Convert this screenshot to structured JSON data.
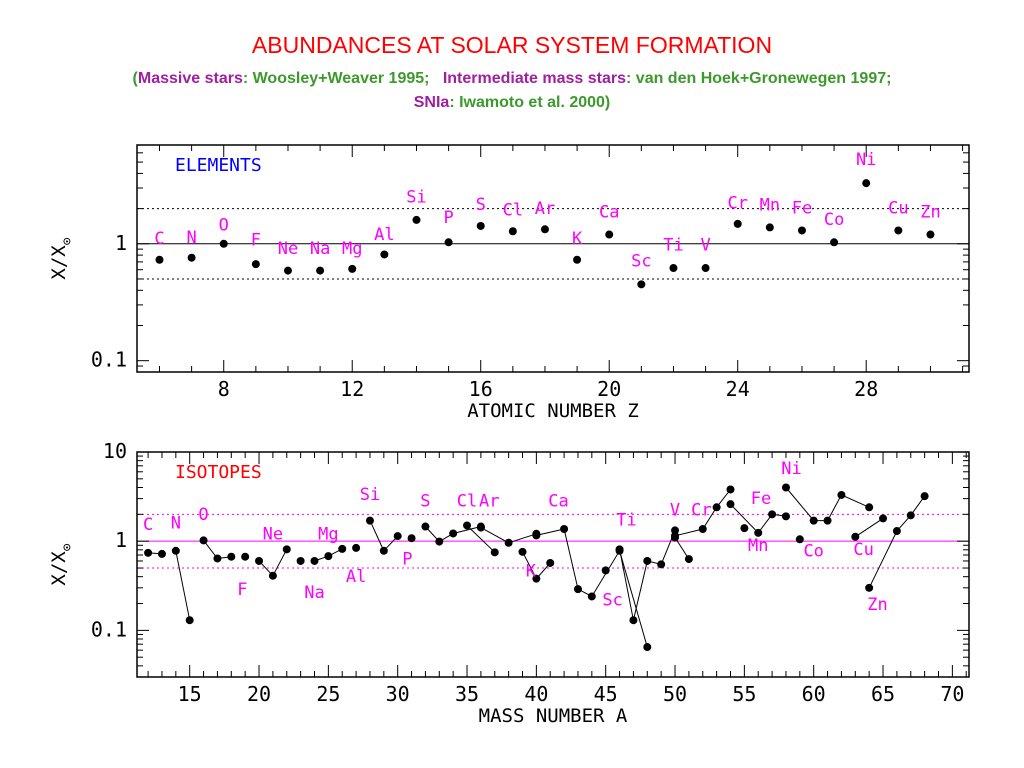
{
  "header": {
    "title": "ABUNDANCES AT SOLAR SYSTEM FORMATION",
    "sub_open": "(",
    "sub_massive_label": "Massive stars",
    "sub_massive_ref": ": Woosley+Weaver 1995;",
    "sub_inter_label": "Intermediate mass stars",
    "sub_inter_ref": ": van den Hoek+Gronewegen 1997;",
    "sub_snia_label": "SNIa",
    "sub_snia_ref": ": Iwamoto et al. 2000)"
  },
  "colors": {
    "title": "#ff0000",
    "massive": "#a020a0",
    "refs": "#3c9a2c",
    "labels": "#ff00ff",
    "elements_tag": "#0000ff",
    "isotopes_tag": "#ff0000",
    "points": "#000000"
  },
  "chart_data": [
    {
      "type": "scatter",
      "tag": "ELEMENTS",
      "xlabel": "ATOMIC NUMBER Z",
      "ylabel": "X/X",
      "ylabel_sub": "⊙",
      "yscale": "log",
      "xlim": [
        5.3,
        31.2
      ],
      "ylim": [
        0.08,
        7
      ],
      "xticks": [
        8,
        12,
        16,
        20,
        24,
        28
      ],
      "yticks": [
        {
          "v": 0.1,
          "label": "0.1"
        },
        {
          "v": 1,
          "label": "1"
        }
      ],
      "reference_lines": [
        {
          "y": 1,
          "style": "solid"
        },
        {
          "y": 2,
          "style": "dotted"
        },
        {
          "y": 0.5,
          "style": "dotted"
        }
      ],
      "points": [
        {
          "x": 6,
          "y": 0.73,
          "label": "C",
          "ly": 1.0
        },
        {
          "x": 7,
          "y": 0.76,
          "label": "N",
          "ly": 1.02
        },
        {
          "x": 8,
          "y": 1.0,
          "label": "O",
          "ly": 1.3
        },
        {
          "x": 9,
          "y": 0.67,
          "label": "F",
          "ly": 0.97
        },
        {
          "x": 10,
          "y": 0.59,
          "label": "Ne",
          "ly": 0.82
        },
        {
          "x": 11,
          "y": 0.59,
          "label": "Na",
          "ly": 0.82
        },
        {
          "x": 12,
          "y": 0.61,
          "label": "Mg",
          "ly": 0.82
        },
        {
          "x": 13,
          "y": 0.81,
          "label": "Al",
          "ly": 1.08
        },
        {
          "x": 14,
          "y": 1.6,
          "label": "Si",
          "ly": 2.25
        },
        {
          "x": 15,
          "y": 1.03,
          "label": "P",
          "ly": 1.5
        },
        {
          "x": 16,
          "y": 1.42,
          "label": "S",
          "ly": 1.95
        },
        {
          "x": 17,
          "y": 1.28,
          "label": "Cl",
          "ly": 1.75
        },
        {
          "x": 18,
          "y": 1.33,
          "label": "Ar",
          "ly": 1.8
        },
        {
          "x": 19,
          "y": 0.73,
          "label": "K",
          "ly": 1.0
        },
        {
          "x": 20,
          "y": 1.2,
          "label": "Ca",
          "ly": 1.68
        },
        {
          "x": 21,
          "y": 0.45,
          "label": "Sc",
          "ly": 0.64
        },
        {
          "x": 22,
          "y": 0.62,
          "label": "Ti",
          "ly": 0.88
        },
        {
          "x": 23,
          "y": 0.62,
          "label": "V",
          "ly": 0.88
        },
        {
          "x": 24,
          "y": 1.48,
          "label": "Cr",
          "ly": 2.0
        },
        {
          "x": 25,
          "y": 1.38,
          "label": "Mn",
          "ly": 1.93
        },
        {
          "x": 26,
          "y": 1.3,
          "label": "Fe",
          "ly": 1.82
        },
        {
          "x": 27,
          "y": 1.03,
          "label": "Co",
          "ly": 1.45
        },
        {
          "x": 28,
          "y": 3.3,
          "label": "Ni",
          "ly": 4.7
        },
        {
          "x": 29,
          "y": 1.3,
          "label": "Cu",
          "ly": 1.82
        },
        {
          "x": 30,
          "y": 1.2,
          "label": "Zn",
          "ly": 1.68
        }
      ]
    },
    {
      "type": "line",
      "tag": "ISOTOPES",
      "xlabel": "MASS NUMBER  A",
      "ylabel": "X/X",
      "ylabel_sub": "⊙",
      "yscale": "log",
      "xlim": [
        11.2,
        71.2
      ],
      "ylim": [
        0.03,
        10
      ],
      "xticks": [
        15,
        20,
        25,
        30,
        35,
        40,
        45,
        50,
        55,
        60,
        65,
        70
      ],
      "yticks": [
        {
          "v": 0.1,
          "label": "0.1"
        },
        {
          "v": 1,
          "label": "1"
        },
        {
          "v": 10,
          "label": "10"
        }
      ],
      "reference_lines": [
        {
          "y": 1,
          "style": "solid"
        },
        {
          "y": 2,
          "style": "dotted"
        },
        {
          "y": 0.5,
          "style": "dotted"
        }
      ],
      "series": [
        {
          "points": [
            [
              12,
              0.74
            ],
            [
              13,
              0.72
            ]
          ]
        },
        {
          "points": [
            [
              14,
              0.78
            ],
            [
              15,
              0.13
            ]
          ]
        },
        {
          "points": [
            [
              16,
              1.02
            ],
            [
              17,
              0.64
            ],
            [
              18,
              0.67
            ]
          ]
        },
        {
          "points": [
            [
              19,
              0.67
            ]
          ]
        },
        {
          "points": [
            [
              20,
              0.6
            ],
            [
              21,
              0.41
            ],
            [
              22,
              0.81
            ]
          ]
        },
        {
          "points": [
            [
              23,
              0.6
            ]
          ]
        },
        {
          "points": [
            [
              24,
              0.6
            ],
            [
              25,
              0.68
            ],
            [
              26,
              0.82
            ]
          ]
        },
        {
          "points": [
            [
              27,
              0.84
            ]
          ]
        },
        {
          "points": [
            [
              28,
              1.7
            ],
            [
              29,
              0.78
            ],
            [
              30,
              1.14
            ]
          ]
        },
        {
          "points": [
            [
              31,
              1.08
            ]
          ]
        },
        {
          "points": [
            [
              32,
              1.46
            ],
            [
              33,
              0.99
            ],
            [
              34,
              1.22
            ],
            [
              36,
              1.46
            ]
          ]
        },
        {
          "points": [
            [
              35,
              1.5
            ],
            [
              37,
              0.75
            ]
          ]
        },
        {
          "points": [
            [
              36,
              1.42
            ],
            [
              38,
              0.96
            ],
            [
              40,
              1.21
            ]
          ]
        },
        {
          "points": [
            [
              39,
              0.76
            ],
            [
              40,
              0.38
            ],
            [
              41,
              0.57
            ]
          ]
        },
        {
          "points": [
            [
              40,
              1.16
            ],
            [
              42,
              1.37
            ],
            [
              43,
              0.29
            ],
            [
              44,
              0.24
            ],
            [
              46,
              0.78
            ],
            [
              48,
              0.065
            ]
          ]
        },
        {
          "points": [
            [
              45,
              0.47
            ]
          ]
        },
        {
          "points": [
            [
              46,
              0.81
            ],
            [
              47,
              0.13
            ],
            [
              48,
              0.6
            ],
            [
              49,
              0.55
            ],
            [
              50,
              1.32
            ]
          ]
        },
        {
          "points": [
            [
              50,
              1.1
            ],
            [
              51,
              0.63
            ]
          ]
        },
        {
          "points": [
            [
              50,
              1.15
            ],
            [
              52,
              1.37
            ],
            [
              53,
              2.4
            ],
            [
              54,
              3.8
            ]
          ]
        },
        {
          "points": [
            [
              54,
              2.6
            ],
            [
              56,
              1.24
            ],
            [
              57,
              2.0
            ],
            [
              58,
              1.9
            ]
          ]
        },
        {
          "points": [
            [
              55,
              1.4
            ]
          ]
        },
        {
          "points": [
            [
              58,
              4.0
            ],
            [
              60,
              1.7
            ],
            [
              61,
              1.7
            ],
            [
              62,
              3.3
            ],
            [
              64,
              2.4
            ]
          ]
        },
        {
          "points": [
            [
              59,
              1.05
            ]
          ]
        },
        {
          "points": [
            [
              63,
              1.12
            ],
            [
              65,
              1.8
            ]
          ]
        },
        {
          "points": [
            [
              64,
              0.3
            ],
            [
              66,
              1.3
            ],
            [
              67,
              1.95
            ],
            [
              68,
              3.2
            ]
          ]
        }
      ],
      "labels": [
        {
          "x": 12,
          "y": 1.34,
          "text": "C"
        },
        {
          "x": 14,
          "y": 1.39,
          "text": "N"
        },
        {
          "x": 16,
          "y": 1.72,
          "text": "O"
        },
        {
          "x": 18.8,
          "y": 0.25,
          "text": "F"
        },
        {
          "x": 21,
          "y": 1.05,
          "text": "Ne"
        },
        {
          "x": 24,
          "y": 0.23,
          "text": "Na"
        },
        {
          "x": 25,
          "y": 1.05,
          "text": "Mg"
        },
        {
          "x": 27,
          "y": 0.35,
          "text": "Al"
        },
        {
          "x": 28,
          "y": 2.9,
          "text": "Si"
        },
        {
          "x": 30.7,
          "y": 0.55,
          "text": "P"
        },
        {
          "x": 32,
          "y": 2.45,
          "text": "S"
        },
        {
          "x": 35,
          "y": 2.45,
          "text": "Cl"
        },
        {
          "x": 36.6,
          "y": 2.45,
          "text": "Ar"
        },
        {
          "x": 39.6,
          "y": 0.4,
          "text": "K"
        },
        {
          "x": 41.6,
          "y": 2.45,
          "text": "Ca"
        },
        {
          "x": 46.5,
          "y": 1.5,
          "text": "Ti"
        },
        {
          "x": 45.5,
          "y": 0.19,
          "text": "Sc"
        },
        {
          "x": 50,
          "y": 1.95,
          "text": "V"
        },
        {
          "x": 51.9,
          "y": 1.95,
          "text": "Cr"
        },
        {
          "x": 56.2,
          "y": 2.6,
          "text": "Fe"
        },
        {
          "x": 56,
          "y": 0.78,
          "text": "Mn"
        },
        {
          "x": 58.4,
          "y": 5.7,
          "text": "Ni"
        },
        {
          "x": 60,
          "y": 0.67,
          "text": "Co"
        },
        {
          "x": 63.6,
          "y": 0.7,
          "text": "Cu"
        },
        {
          "x": 64.6,
          "y": 0.17,
          "text": "Zn"
        }
      ]
    }
  ]
}
